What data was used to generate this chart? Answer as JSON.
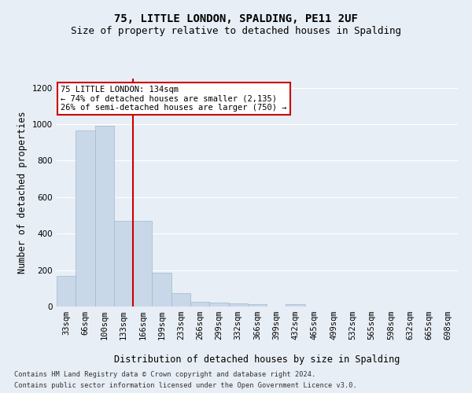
{
  "title": "75, LITTLE LONDON, SPALDING, PE11 2UF",
  "subtitle": "Size of property relative to detached houses in Spalding",
  "xlabel": "Distribution of detached houses by size in Spalding",
  "ylabel": "Number of detached properties",
  "categories": [
    "33sqm",
    "66sqm",
    "100sqm",
    "133sqm",
    "166sqm",
    "199sqm",
    "233sqm",
    "266sqm",
    "299sqm",
    "332sqm",
    "366sqm",
    "399sqm",
    "432sqm",
    "465sqm",
    "499sqm",
    "532sqm",
    "565sqm",
    "598sqm",
    "632sqm",
    "665sqm",
    "698sqm"
  ],
  "values": [
    170,
    965,
    990,
    470,
    470,
    185,
    75,
    28,
    22,
    18,
    12,
    0,
    12,
    0,
    0,
    0,
    0,
    0,
    0,
    0,
    0
  ],
  "bar_color": "#c8d8e8",
  "bar_edge_color": "#a0b8cc",
  "vline_index": 3,
  "vline_color": "#cc0000",
  "annotation_text": "75 LITTLE LONDON: 134sqm\n← 74% of detached houses are smaller (2,135)\n26% of semi-detached houses are larger (750) →",
  "annotation_box_color": "#ffffff",
  "annotation_box_edge_color": "#cc0000",
  "footer_line1": "Contains HM Land Registry data © Crown copyright and database right 2024.",
  "footer_line2": "Contains public sector information licensed under the Open Government Licence v3.0.",
  "ylim": [
    0,
    1250
  ],
  "yticks": [
    0,
    200,
    400,
    600,
    800,
    1000,
    1200
  ],
  "bg_color": "#e8eef5",
  "plot_bg_color": "#e8eef5",
  "title_fontsize": 10,
  "subtitle_fontsize": 9,
  "axis_label_fontsize": 8.5,
  "tick_fontsize": 7.5
}
